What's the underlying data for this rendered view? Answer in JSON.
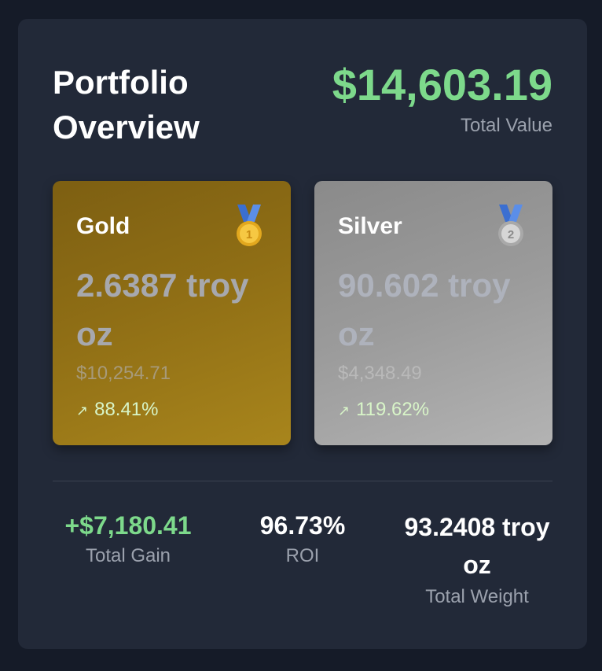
{
  "header": {
    "title": "Portfolio Overview",
    "total_value": "$14,603.19",
    "total_label": "Total Value"
  },
  "metals": [
    {
      "name": "Gold",
      "medal": "gold-medal-1-icon",
      "weight": "2.6387 troy oz",
      "value": "$10,254.71",
      "change_arrow": "↗",
      "change": "88.41%"
    },
    {
      "name": "Silver",
      "medal": "silver-medal-2-icon",
      "weight": "90.602 troy oz",
      "value": "$4,348.49",
      "change_arrow": "↗",
      "change": "119.62%"
    }
  ],
  "summary": {
    "gain_value": "+$7,180.41",
    "gain_label": "Total Gain",
    "roi_value": "96.73%",
    "roi_label": "ROI",
    "weight_value": "93.2408 troy oz",
    "weight_label": "Total Weight"
  },
  "colors": {
    "background": "#151b28",
    "card": "#222938",
    "accent_green": "#7dd98b",
    "gold_card": "#8f6e15",
    "silver_card": "#9b9b9b"
  }
}
